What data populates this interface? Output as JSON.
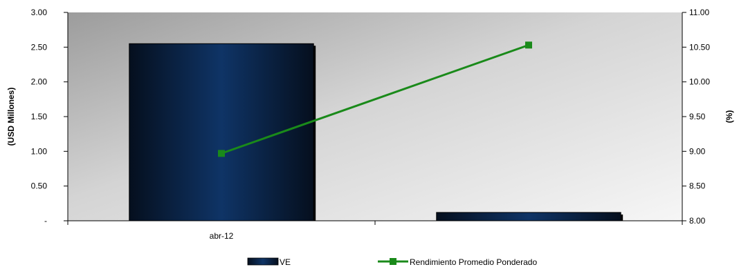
{
  "chart_data": {
    "type": "bar+line",
    "categories": [
      "abr-12",
      ""
    ],
    "series": [
      {
        "name": "VE",
        "type": "bar",
        "axis": "left",
        "values": [
          2.55,
          0.12
        ],
        "color": "#0f2d55"
      },
      {
        "name": "Rendimiento Promedio Ponderado",
        "type": "line",
        "axis": "right",
        "values": [
          8.97,
          10.53
        ],
        "color": "#1a8a1a"
      }
    ],
    "ylabel": "(USD Millones)",
    "y2label": "(%)",
    "ylim": [
      0,
      3
    ],
    "y2lim": [
      8,
      11
    ],
    "yticks": [
      "-",
      "0.50",
      "1.00",
      "1.50",
      "2.00",
      "2.50",
      "3.00"
    ],
    "y2ticks": [
      "8.00",
      "8.50",
      "9.00",
      "9.50",
      "10.00",
      "10.50",
      "11.00"
    ],
    "legend_position": "bottom",
    "grid": false
  }
}
